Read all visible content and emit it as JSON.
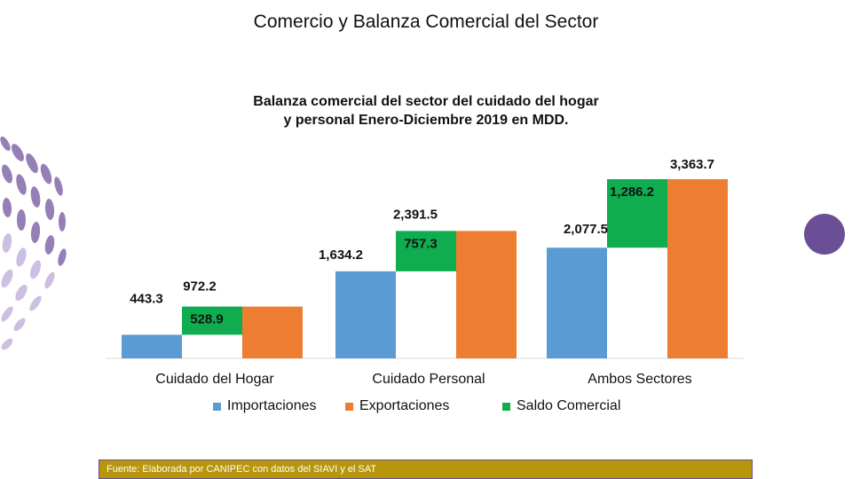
{
  "page": {
    "title": "Comercio y Balanza Comercial del Sector",
    "source": "Fuente: Elaborada por CANIPEC con datos del SIAVI y el SAT"
  },
  "colors": {
    "importaciones": "#5b9bd5",
    "exportaciones": "#ed7d31",
    "saldo": "#0fac50",
    "decoration": "#6b4f96",
    "source_bg": "#b8960c"
  },
  "chart_data": {
    "type": "bar",
    "title": "Balanza comercial del sector del cuidado del hogar y personal Enero-Diciembre 2019 en MDD.",
    "title_lines": [
      "Balanza comercial del sector del cuidado del hogar",
      "y personal Enero-Diciembre 2019 en MDD."
    ],
    "categories": [
      "Cuidado del Hogar",
      "Cuidado Personal",
      "Ambos Sectores"
    ],
    "series": [
      {
        "name": "Importaciones",
        "values": [
          443.3,
          1634.2,
          2077.5
        ],
        "labels": [
          "443.3",
          "1,634.2",
          "2,077.5"
        ]
      },
      {
        "name": "Exportaciones",
        "values": [
          972.2,
          2391.5,
          3363.7
        ],
        "labels": [
          "972.2",
          "2,391.5",
          "3,363.7"
        ]
      },
      {
        "name": "Saldo Comercial",
        "values": [
          528.9,
          757.3,
          1286.2
        ],
        "labels": [
          "528.9",
          "757.3",
          "1,286.2"
        ]
      }
    ],
    "stacking": "Saldo Comercial floats between Importaciones and Exportaciones",
    "legend_position": "bottom",
    "grid": false,
    "xlabel": "",
    "ylabel": ""
  }
}
